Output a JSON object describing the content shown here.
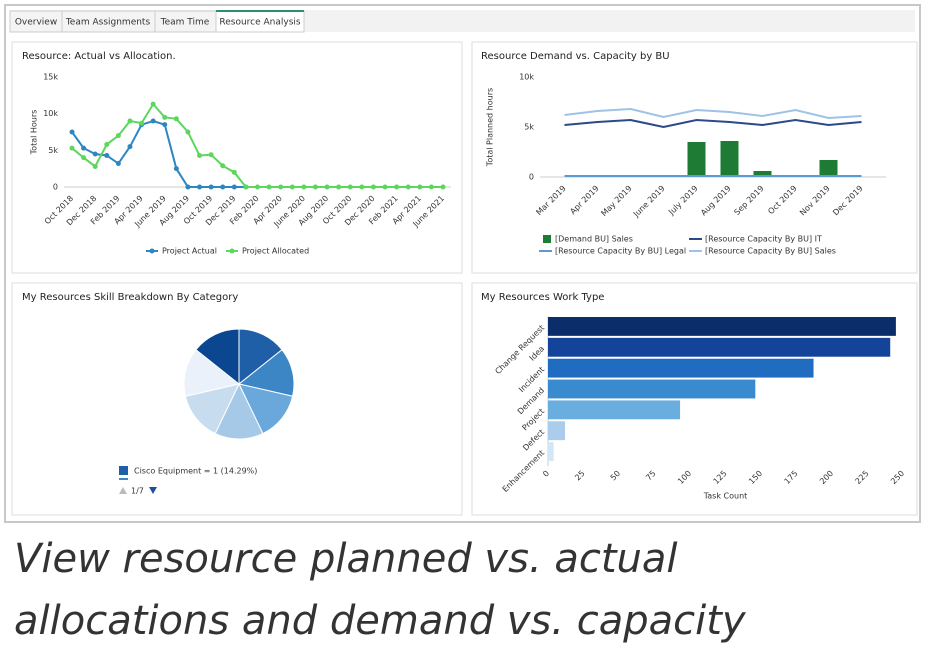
{
  "tabs": [
    "Overview",
    "Team Assignments",
    "Team Time",
    "Resource Analysis"
  ],
  "active_tab": 3,
  "caption": [
    "View resource planned vs. actual",
    "allocations and demand vs. capacity"
  ],
  "chart_data": [
    {
      "type": "line",
      "title": "Resource: Actual vs Allocation.",
      "ylabel": "Total Hours",
      "categories": [
        "Oct 2018",
        null,
        "Dec 2018",
        null,
        "Feb 2019",
        null,
        "Apr 2019",
        null,
        "June 2019",
        null,
        "Aug 2019",
        null,
        "Oct 2019",
        null,
        "Dec 2019",
        null,
        "Feb 2020",
        null,
        "Apr 2020",
        null,
        "June 2020",
        null,
        "Aug 2020",
        null,
        "Oct 2020",
        null,
        "Dec 2020",
        null,
        "Feb 2021",
        null,
        "Apr 2021",
        null,
        "June 2021"
      ],
      "series": [
        {
          "name": "Project Actual",
          "color": "#2e86c1",
          "values": [
            7500,
            5300,
            4500,
            4300,
            3200,
            5500,
            8500,
            9000,
            8500,
            2500,
            0,
            0,
            0,
            0,
            0,
            0,
            null,
            null,
            null,
            null,
            null,
            null,
            null,
            null,
            null,
            null,
            null,
            null,
            null,
            null,
            null,
            null,
            null
          ]
        },
        {
          "name": "Project Allocated",
          "color": "#5cd65c",
          "values": [
            5300,
            4000,
            2800,
            5800,
            7000,
            9000,
            8700,
            11300,
            9500,
            9300,
            7500,
            4300,
            4400,
            2900,
            2000,
            0,
            0,
            0,
            0,
            0,
            0,
            0,
            0,
            0,
            0,
            0,
            0,
            0,
            0,
            0,
            0,
            0,
            0
          ]
        }
      ],
      "ylim": [
        0,
        15000
      ],
      "yticks": [
        0,
        {
          "value": 5000,
          "label": "5k"
        },
        {
          "value": 10000,
          "label": "10k"
        },
        {
          "value": 15000,
          "label": "15k"
        }
      ],
      "grid": false,
      "legend": "bottom"
    },
    {
      "type": "combo",
      "title": "Resource Demand vs. Capacity by BU",
      "ylabel": "Total Planned hours",
      "categories": [
        "Mar 2019",
        "Apr 2019",
        "May 2019",
        "June 2019",
        "July 2019",
        "Aug 2019",
        "Sep 2019",
        "Oct 2019",
        "Nov 2019",
        "Dec 2019"
      ],
      "series": [
        {
          "name": "[Demand BU] Sales",
          "type": "bar",
          "color": "#1e7b34",
          "values": [
            0,
            0,
            0,
            0,
            3500,
            3600,
            600,
            0,
            1700,
            0
          ]
        },
        {
          "name": "[Resource Capacity By BU] IT",
          "type": "line",
          "color": "#2b4a8a",
          "values": [
            5200,
            5500,
            5700,
            5000,
            5700,
            5500,
            5200,
            5700,
            5200,
            5500
          ]
        },
        {
          "name": "[Resource Capacity By BU] Legal",
          "type": "line",
          "color": "#5b9bd5",
          "values": [
            100,
            100,
            100,
            100,
            100,
            100,
            100,
            100,
            100,
            100
          ]
        },
        {
          "name": "[Resource Capacity By BU] Sales",
          "type": "line",
          "color": "#9dc3e6",
          "values": [
            6200,
            6600,
            6800,
            6000,
            6700,
            6500,
            6100,
            6700,
            5900,
            6100
          ]
        }
      ],
      "ylim": [
        0,
        10000
      ],
      "yticks": [
        0,
        {
          "value": 5000,
          "label": "5k"
        },
        {
          "value": 10000,
          "label": "10k"
        }
      ],
      "grid": false,
      "legend": "bottom"
    },
    {
      "type": "pie",
      "title": "My Resources Skill Breakdown By Category",
      "categories": [
        "Cisco Equipment",
        null,
        null,
        null,
        null,
        null,
        null
      ],
      "values": [
        1,
        1,
        1,
        1,
        1,
        1,
        1
      ],
      "colors": [
        "#1f5fa8",
        "#3d86c6",
        "#6aa8dc",
        "#a7c9e8",
        "#c8dcf0",
        "#eaf1fb",
        "#0b4690"
      ],
      "legend_text": "Cisco Equipment = 1 (14.29%)",
      "legend_page": "1/7",
      "legend": "bottom"
    },
    {
      "type": "barh",
      "title": "My Resources Work Type",
      "xlabel": "Task Count",
      "categories": [
        "Change Request",
        "Idea",
        "Incident",
        "Demand",
        "Project",
        "Defect",
        "Enhancement"
      ],
      "values": [
        245,
        241,
        187,
        146,
        93,
        12,
        4
      ],
      "colors": [
        "#0b2e6b",
        "#14439a",
        "#1f6cc0",
        "#3a8ad0",
        "#6aaee0",
        "#a9cdea",
        "#d5e6f4"
      ],
      "xlim": [
        0,
        250
      ],
      "xticks": [
        0,
        25,
        50,
        75,
        100,
        125,
        150,
        175,
        200,
        225,
        250
      ],
      "grid": false
    }
  ]
}
